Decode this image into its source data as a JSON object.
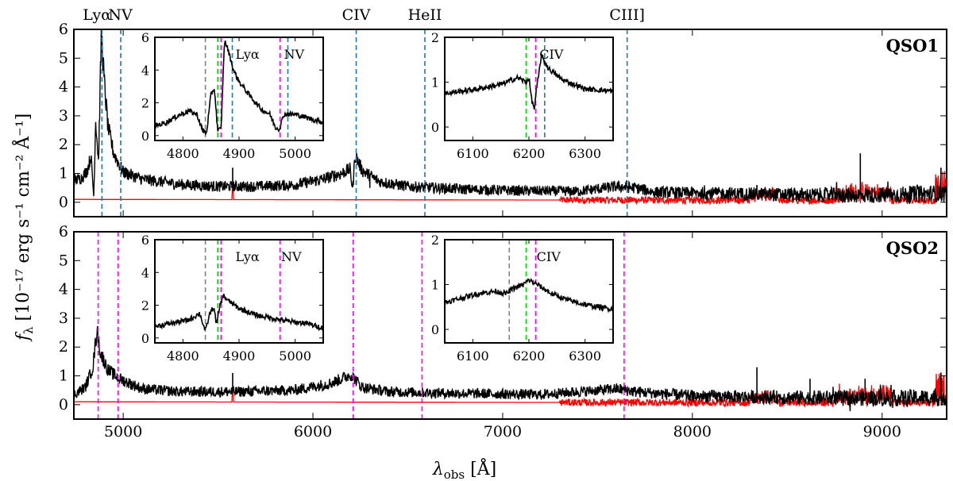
{
  "chart_data": {
    "type": "line",
    "xlabel": "λobs [Å]",
    "xlabel_main": "λ",
    "xlabel_sub": "obs",
    "xlabel_unit": " [Å]",
    "ylabel": "fλ [10⁻¹⁷ erg s⁻¹ cm⁻² Å⁻¹]",
    "ylabel_main": "f",
    "ylabel_sub": "λ",
    "ylabel_unit": " [10⁻¹⁷ erg s⁻¹ cm⁻² Å⁻¹]",
    "xlim": [
      4740,
      9340
    ],
    "ylim": [
      -0.5,
      6.0
    ],
    "xticks": [
      5000,
      6000,
      7000,
      8000,
      9000
    ],
    "yticks": [
      0,
      1,
      2,
      3,
      4,
      5,
      6
    ],
    "line_labels": [
      {
        "text": "Lyα",
        "x": 4862
      },
      {
        "text": "NV",
        "x": 4985
      },
      {
        "text": "CIV",
        "x": 6228
      },
      {
        "text": "HeII",
        "x": 6590
      },
      {
        "text": "CIII]",
        "x": 7656
      }
    ],
    "panels": [
      {
        "name": "QSO1",
        "line_color": "#1f77b4",
        "line_positions": [
          4888,
          4987,
          6228,
          6590,
          7656
        ],
        "spectrum": {
          "color": "#000000",
          "anchors": [
            [
              4740,
              0.75
            ],
            [
              4780,
              0.85
            ],
            [
              4810,
              1.1
            ],
            [
              4830,
              1.6
            ],
            [
              4845,
              0.2
            ],
            [
              4855,
              2.9
            ],
            [
              4870,
              1.4
            ],
            [
              4885,
              5.9
            ],
            [
              4900,
              4.2
            ],
            [
              4920,
              2.6
            ],
            [
              4950,
              1.7
            ],
            [
              4980,
              1.3
            ],
            [
              5000,
              1.05
            ],
            [
              5100,
              0.8
            ],
            [
              5300,
              0.62
            ],
            [
              5500,
              0.55
            ],
            [
              5700,
              0.55
            ],
            [
              5900,
              0.6
            ],
            [
              6050,
              0.8
            ],
            [
              6150,
              1.0
            ],
            [
              6195,
              1.15
            ],
            [
              6210,
              0.45
            ],
            [
              6222,
              1.65
            ],
            [
              6260,
              1.1
            ],
            [
              6350,
              0.72
            ],
            [
              6500,
              0.55
            ],
            [
              6800,
              0.45
            ],
            [
              7100,
              0.4
            ],
            [
              7400,
              0.38
            ],
            [
              7600,
              0.55
            ],
            [
              7700,
              0.5
            ],
            [
              7800,
              0.35
            ],
            [
              8200,
              0.3
            ],
            [
              8600,
              0.25
            ],
            [
              9000,
              0.25
            ],
            [
              9300,
              0.3
            ],
            [
              9340,
              0.3
            ]
          ],
          "spikes": [
            [
              5577,
              1.2
            ],
            [
              6300,
              0.5
            ],
            [
              8340,
              0.6
            ],
            [
              8760,
              0.7
            ],
            [
              8885,
              1.7
            ],
            [
              9310,
              1.2
            ]
          ]
        },
        "error": {
          "color": "#ff0000",
          "level": 0.1
        },
        "inset_lya": {
          "xlim": [
            4750,
            5050
          ],
          "ylim": [
            -0.3,
            6.0
          ],
          "xticks": [
            4800,
            4900,
            5000
          ],
          "yticks": [
            0,
            2,
            4,
            6
          ],
          "labels": [
            {
              "text": "Lyα",
              "x": 4915
            },
            {
              "text": "NV",
              "x": 4998
            }
          ],
          "vlines": [
            {
              "x": 4840,
              "color": "#808080"
            },
            {
              "x": 4862,
              "color": "#00dd00"
            },
            {
              "x": 4868,
              "color": "#ff00ff"
            },
            {
              "x": 4888,
              "color": "#1f77b4"
            },
            {
              "x": 4973,
              "color": "#ff00ff"
            },
            {
              "x": 4987,
              "color": "#1f77b4"
            }
          ],
          "spectrum": [
            [
              4750,
              0.6
            ],
            [
              4770,
              0.8
            ],
            [
              4790,
              1.2
            ],
            [
              4810,
              1.5
            ],
            [
              4825,
              1.3
            ],
            [
              4835,
              0.3
            ],
            [
              4842,
              0.15
            ],
            [
              4850,
              2.5
            ],
            [
              4856,
              2.9
            ],
            [
              4862,
              0.3
            ],
            [
              4868,
              0.4
            ],
            [
              4874,
              5.8
            ],
            [
              4880,
              5.3
            ],
            [
              4890,
              4.0
            ],
            [
              4900,
              3.3
            ],
            [
              4920,
              2.4
            ],
            [
              4940,
              1.6
            ],
            [
              4955,
              1.3
            ],
            [
              4965,
              0.5
            ],
            [
              4972,
              0.4
            ],
            [
              4980,
              1.3
            ],
            [
              5000,
              1.3
            ],
            [
              5030,
              1.0
            ],
            [
              5050,
              0.8
            ]
          ]
        },
        "inset_civ": {
          "xlim": [
            6050,
            6350
          ],
          "ylim": [
            -0.3,
            2.0
          ],
          "xticks": [
            6100,
            6200,
            6300
          ],
          "yticks": [
            0,
            1,
            2
          ],
          "labels": [
            {
              "text": "CIV",
              "x": 6240
            }
          ],
          "vlines": [
            {
              "x": 6195,
              "color": "#00dd00"
            },
            {
              "x": 6212,
              "color": "#ff00ff"
            },
            {
              "x": 6228,
              "color": "#1f77b4"
            }
          ],
          "spectrum": [
            [
              6050,
              0.75
            ],
            [
              6080,
              0.8
            ],
            [
              6110,
              0.85
            ],
            [
              6150,
              0.95
            ],
            [
              6180,
              1.1
            ],
            [
              6195,
              1.0
            ],
            [
              6200,
              1.1
            ],
            [
              6205,
              0.6
            ],
            [
              6210,
              0.4
            ],
            [
              6213,
              0.8
            ],
            [
              6218,
              1.2
            ],
            [
              6222,
              1.6
            ],
            [
              6235,
              1.3
            ],
            [
              6260,
              1.05
            ],
            [
              6300,
              0.85
            ],
            [
              6350,
              0.8
            ]
          ]
        }
      },
      {
        "name": "QSO2",
        "line_color": "#ff00ff",
        "line_positions": [
          4868,
          4973,
          6212,
          6575,
          7640
        ],
        "spectrum": {
          "color": "#000000",
          "anchors": [
            [
              4740,
              0.35
            ],
            [
              4800,
              0.6
            ],
            [
              4840,
              1.3
            ],
            [
              4862,
              2.6
            ],
            [
              4880,
              1.8
            ],
            [
              4920,
              1.2
            ],
            [
              4980,
              0.9
            ],
            [
              5100,
              0.55
            ],
            [
              5300,
              0.45
            ],
            [
              5600,
              0.45
            ],
            [
              5900,
              0.5
            ],
            [
              6100,
              0.75
            ],
            [
              6200,
              1.05
            ],
            [
              6260,
              0.6
            ],
            [
              6400,
              0.45
            ],
            [
              6700,
              0.4
            ],
            [
              7200,
              0.35
            ],
            [
              7600,
              0.55
            ],
            [
              7700,
              0.45
            ],
            [
              8000,
              0.3
            ],
            [
              8500,
              0.25
            ],
            [
              9000,
              0.22
            ],
            [
              9340,
              0.25
            ]
          ],
          "spikes": [
            [
              5577,
              1.1
            ],
            [
              8340,
              1.3
            ],
            [
              8620,
              0.9
            ],
            [
              8910,
              0.9
            ],
            [
              9310,
              1.1
            ]
          ]
        },
        "error": {
          "color": "#ff0000",
          "level": 0.1
        },
        "inset_lya": {
          "xlim": [
            4750,
            5050
          ],
          "ylim": [
            -0.3,
            6.0
          ],
          "xticks": [
            4800,
            4900,
            5000
          ],
          "yticks": [
            0,
            2,
            4,
            6
          ],
          "labels": [
            {
              "text": "Lyα",
              "x": 4915
            },
            {
              "text": "NV",
              "x": 4993
            }
          ],
          "vlines": [
            {
              "x": 4840,
              "color": "#808080"
            },
            {
              "x": 4862,
              "color": "#00dd00"
            },
            {
              "x": 4868,
              "color": "#ff00ff"
            },
            {
              "x": 4973,
              "color": "#ff00ff"
            }
          ],
          "spectrum": [
            [
              4750,
              0.7
            ],
            [
              4780,
              0.9
            ],
            [
              4810,
              1.1
            ],
            [
              4830,
              1.5
            ],
            [
              4840,
              0.4
            ],
            [
              4848,
              1.5
            ],
            [
              4855,
              1.9
            ],
            [
              4860,
              0.8
            ],
            [
              4866,
              2.0
            ],
            [
              4872,
              2.6
            ],
            [
              4880,
              2.3
            ],
            [
              4900,
              1.8
            ],
            [
              4930,
              1.4
            ],
            [
              4960,
              1.2
            ],
            [
              4990,
              1.0
            ],
            [
              5020,
              0.9
            ],
            [
              5050,
              0.6
            ]
          ]
        },
        "inset_civ": {
          "xlim": [
            6050,
            6350
          ],
          "ylim": [
            -0.3,
            2.0
          ],
          "xticks": [
            6100,
            6200,
            6300
          ],
          "yticks": [
            0,
            1,
            2
          ],
          "labels": [
            {
              "text": "CIV",
              "x": 6235
            }
          ],
          "vlines": [
            {
              "x": 6165,
              "color": "#808080"
            },
            {
              "x": 6195,
              "color": "#00dd00"
            },
            {
              "x": 6212,
              "color": "#ff00ff"
            }
          ],
          "spectrum": [
            [
              6050,
              0.6
            ],
            [
              6080,
              0.7
            ],
            [
              6110,
              0.8
            ],
            [
              6140,
              0.85
            ],
            [
              6160,
              0.8
            ],
            [
              6170,
              0.9
            ],
            [
              6190,
              1.0
            ],
            [
              6200,
              1.1
            ],
            [
              6215,
              1.0
            ],
            [
              6240,
              0.8
            ],
            [
              6270,
              0.65
            ],
            [
              6300,
              0.55
            ],
            [
              6350,
              0.45
            ]
          ]
        }
      }
    ]
  }
}
